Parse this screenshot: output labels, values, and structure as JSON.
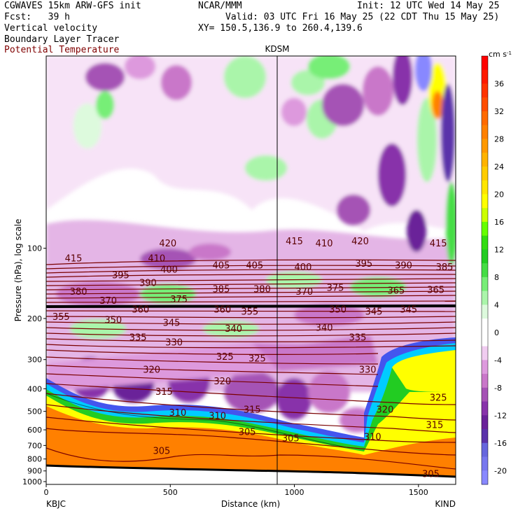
{
  "header": {
    "line1_left": "CGWAVES 15km ARW-GFS init",
    "line1_mid": "NCAR/MMM",
    "line1_right": "Init: 12 UTC Wed 14 May 25",
    "line2_left": "Fcst:   39 h",
    "line2_right": "Valid: 03 UTC Fri 16 May 25 (22 CDT Thu 15 May 25)",
    "line3_left": "Vertical velocity",
    "line3_right": "XY= 150.5,136.9 to 260.4,139.6",
    "line4_left": "Boundary Layer Tracer",
    "line5_left": "Potential Temperature"
  },
  "chart_data": {
    "type": "heatmap",
    "title": "",
    "xlabel": "Distance (km)",
    "ylabel": "Pressure (hPa), log scale",
    "xlim": [
      0,
      1650
    ],
    "ylim": [
      1000,
      15
    ],
    "y_scale": "log",
    "x_ticks": [
      0,
      500,
      1000,
      1500
    ],
    "y_ticks": [
      100,
      200,
      300,
      400,
      500,
      600,
      700,
      800,
      900,
      1000
    ],
    "x_end_labels": {
      "left": "KBJC",
      "right": "KIND"
    },
    "marker": {
      "label": "KDSM",
      "x": 925
    },
    "colorbar": {
      "units": "cm s",
      "units_sup": "-1",
      "tick_values": [
        36,
        32,
        28,
        24,
        20,
        16,
        12,
        8,
        4,
        0,
        -4,
        -8,
        -12,
        -16,
        -20
      ],
      "bins": [
        {
          "lo": 38,
          "hi": 40,
          "color": "#ff0000"
        },
        {
          "lo": 36,
          "hi": 38,
          "color": "#ff1a00"
        },
        {
          "lo": 34,
          "hi": 36,
          "color": "#ff3300"
        },
        {
          "lo": 32,
          "hi": 34,
          "color": "#ff4d00"
        },
        {
          "lo": 30,
          "hi": 32,
          "color": "#ff6a00"
        },
        {
          "lo": 28,
          "hi": 30,
          "color": "#ff8000"
        },
        {
          "lo": 26,
          "hi": 28,
          "color": "#ff9900"
        },
        {
          "lo": 24,
          "hi": 26,
          "color": "#ffb300"
        },
        {
          "lo": 22,
          "hi": 24,
          "color": "#ffcc00"
        },
        {
          "lo": 20,
          "hi": 22,
          "color": "#ffe600"
        },
        {
          "lo": 18,
          "hi": 20,
          "color": "#ffff00"
        },
        {
          "lo": 16,
          "hi": 18,
          "color": "#ccff00"
        },
        {
          "lo": 14,
          "hi": 16,
          "color": "#66ff00"
        },
        {
          "lo": 12,
          "hi": 14,
          "color": "#33dd11"
        },
        {
          "lo": 10,
          "hi": 12,
          "color": "#22cc22"
        },
        {
          "lo": 8,
          "hi": 10,
          "color": "#44dd44"
        },
        {
          "lo": 6,
          "hi": 8,
          "color": "#77ee77"
        },
        {
          "lo": 4,
          "hi": 6,
          "color": "#aaf5aa"
        },
        {
          "lo": 2,
          "hi": 4,
          "color": "#ddfadd"
        },
        {
          "lo": -2,
          "hi": 2,
          "color": "#ffffff"
        },
        {
          "lo": -4,
          "hi": -2,
          "color": "#f0ccf0"
        },
        {
          "lo": -6,
          "hi": -4,
          "color": "#dd99dd"
        },
        {
          "lo": -8,
          "hi": -6,
          "color": "#c977c9"
        },
        {
          "lo": -10,
          "hi": -8,
          "color": "#a552b5"
        },
        {
          "lo": -12,
          "hi": -10,
          "color": "#8833aa"
        },
        {
          "lo": -14,
          "hi": -12,
          "color": "#6a2299"
        },
        {
          "lo": -16,
          "hi": -14,
          "color": "#5a33aa"
        },
        {
          "lo": -18,
          "hi": -16,
          "color": "#6666dd"
        },
        {
          "lo": -20,
          "hi": -18,
          "color": "#7777ee"
        },
        {
          "lo": -22,
          "hi": -20,
          "color": "#8888ff"
        }
      ]
    },
    "theta_contour_labels": [
      {
        "v": 420,
        "x": 490,
        "p": 95
      },
      {
        "v": 415,
        "x": 1000,
        "p": 93
      },
      {
        "v": 410,
        "x": 1120,
        "p": 95
      },
      {
        "v": 420,
        "x": 1265,
        "p": 93
      },
      {
        "v": 415,
        "x": 1580,
        "p": 95
      },
      {
        "v": 415,
        "x": 110,
        "p": 110
      },
      {
        "v": 410,
        "x": 445,
        "p": 110
      },
      {
        "v": 400,
        "x": 495,
        "p": 123
      },
      {
        "v": 405,
        "x": 705,
        "p": 118
      },
      {
        "v": 405,
        "x": 840,
        "p": 118
      },
      {
        "v": 400,
        "x": 1035,
        "p": 120
      },
      {
        "v": 395,
        "x": 1280,
        "p": 116
      },
      {
        "v": 390,
        "x": 1440,
        "p": 118
      },
      {
        "v": 385,
        "x": 1605,
        "p": 120
      },
      {
        "v": 395,
        "x": 300,
        "p": 130
      },
      {
        "v": 390,
        "x": 410,
        "p": 140
      },
      {
        "v": 380,
        "x": 130,
        "p": 153
      },
      {
        "v": 385,
        "x": 705,
        "p": 149
      },
      {
        "v": 380,
        "x": 870,
        "p": 149
      },
      {
        "v": 370,
        "x": 1040,
        "p": 153
      },
      {
        "v": 375,
        "x": 1165,
        "p": 147
      },
      {
        "v": 365,
        "x": 1410,
        "p": 151
      },
      {
        "v": 365,
        "x": 1570,
        "p": 150
      },
      {
        "v": 370,
        "x": 250,
        "p": 167
      },
      {
        "v": 375,
        "x": 535,
        "p": 165
      },
      {
        "v": 360,
        "x": 380,
        "p": 182
      },
      {
        "v": 360,
        "x": 710,
        "p": 182
      },
      {
        "v": 355,
        "x": 820,
        "p": 186
      },
      {
        "v": 350,
        "x": 1175,
        "p": 182
      },
      {
        "v": 345,
        "x": 1320,
        "p": 186
      },
      {
        "v": 345,
        "x": 1460,
        "p": 182
      },
      {
        "v": 355,
        "x": 60,
        "p": 196
      },
      {
        "v": 350,
        "x": 270,
        "p": 202
      },
      {
        "v": 345,
        "x": 505,
        "p": 208
      },
      {
        "v": 340,
        "x": 755,
        "p": 220
      },
      {
        "v": 340,
        "x": 1120,
        "p": 218
      },
      {
        "v": 335,
        "x": 1255,
        "p": 240
      },
      {
        "v": 335,
        "x": 370,
        "p": 240
      },
      {
        "v": 330,
        "x": 515,
        "p": 252
      },
      {
        "v": 325,
        "x": 720,
        "p": 290
      },
      {
        "v": 325,
        "x": 850,
        "p": 295
      },
      {
        "v": 330,
        "x": 1295,
        "p": 330
      },
      {
        "v": 320,
        "x": 425,
        "p": 330
      },
      {
        "v": 320,
        "x": 710,
        "p": 370
      },
      {
        "v": 315,
        "x": 475,
        "p": 410
      },
      {
        "v": 325,
        "x": 1580,
        "p": 435
      },
      {
        "v": 310,
        "x": 530,
        "p": 505
      },
      {
        "v": 310,
        "x": 690,
        "p": 520
      },
      {
        "v": 315,
        "x": 830,
        "p": 490
      },
      {
        "v": 320,
        "x": 1365,
        "p": 490
      },
      {
        "v": 315,
        "x": 1565,
        "p": 570
      },
      {
        "v": 305,
        "x": 810,
        "p": 610
      },
      {
        "v": 305,
        "x": 985,
        "p": 650
      },
      {
        "v": 310,
        "x": 1315,
        "p": 640
      },
      {
        "v": 305,
        "x": 465,
        "p": 735
      },
      {
        "v": 305,
        "x": 1550,
        "p": 925
      }
    ],
    "grid": false,
    "legend": "colorbar-right"
  }
}
